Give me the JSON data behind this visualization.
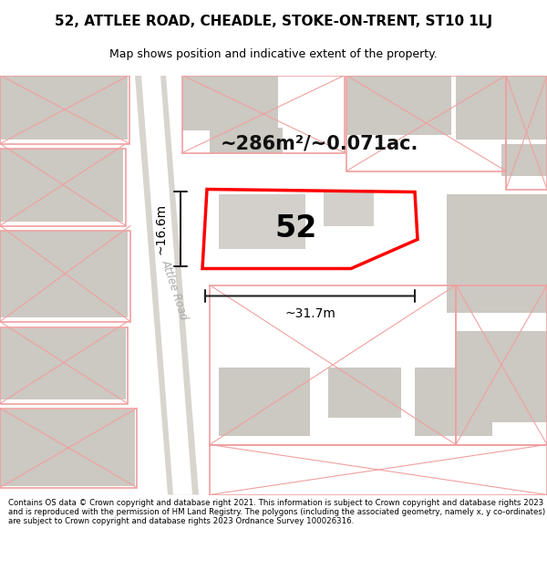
{
  "title_line1": "52, ATTLEE ROAD, CHEADLE, STOKE-ON-TRENT, ST10 1LJ",
  "title_line2": "Map shows position and indicative extent of the property.",
  "footer_text": "Contains OS data © Crown copyright and database right 2021. This information is subject to Crown copyright and database rights 2023 and is reproduced with the permission of HM Land Registry. The polygons (including the associated geometry, namely x, y co-ordinates) are subject to Crown copyright and database rights 2023 Ordnance Survey 100026316.",
  "area_label": "~286m²/~0.071ac.",
  "house_number": "52",
  "dim_horizontal": "~31.7m",
  "dim_vertical": "~16.6m",
  "road_label": "Attlee Road",
  "map_bg": "#eeebe5",
  "road_color": "#d8d4ce",
  "block_color": "#ccc8c2",
  "highlight_color": "#ff0000",
  "title_bg": "#ffffff",
  "footer_bg": "#ffffff",
  "pink": "#f0a0a0"
}
